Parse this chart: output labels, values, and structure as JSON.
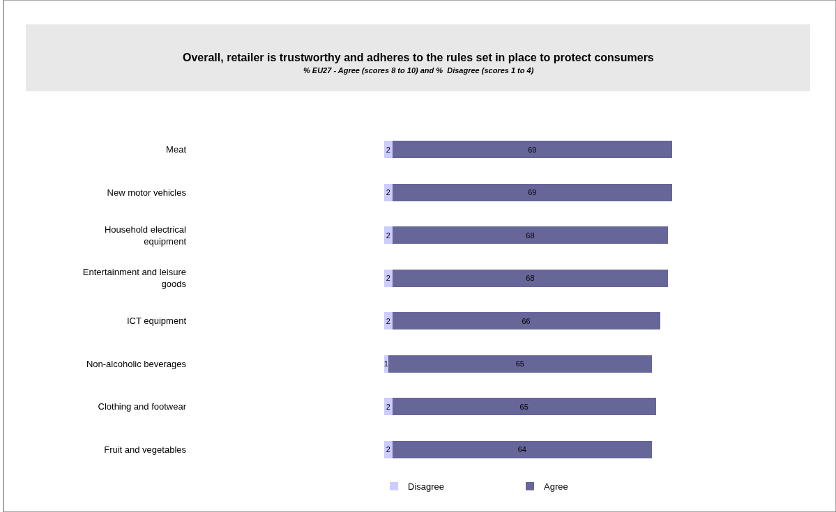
{
  "chart_data": {
    "type": "bar",
    "orientation": "horizontal",
    "stacked": true,
    "data_labels": true,
    "grid": false,
    "legend": "bottom",
    "title": "Overall, retailer is trustworthy and adheres to the rules set in place to protect consumers",
    "subtitle": "% EU27 - Agree (scores 8 to 10) and %  Disagree (scores 1 to 4)",
    "categories": [
      "Meat",
      "New motor vehicles",
      "Household electrical equipment",
      "Entertainment and leisure goods",
      "ICT equipment",
      "Non-alcoholic beverages",
      "Clothing and footwear",
      "Fruit and vegetables"
    ],
    "series": [
      {
        "name": "Disagree",
        "color": "#ccccff",
        "values": [
          2,
          2,
          2,
          2,
          2,
          1,
          2,
          2
        ]
      },
      {
        "name": "Agree",
        "color": "#666699",
        "values": [
          69,
          69,
          68,
          68,
          66,
          65,
          65,
          64
        ]
      }
    ]
  }
}
